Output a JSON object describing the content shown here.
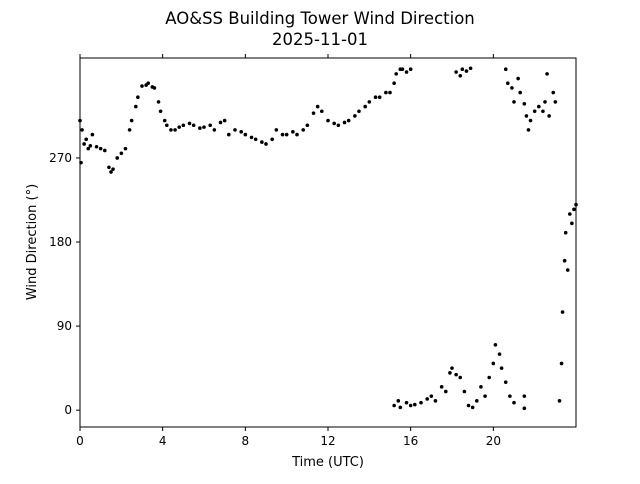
{
  "chart_data": {
    "type": "scatter",
    "title": "AO&SS Building Tower Wind Direction",
    "subtitle": "2025-11-01",
    "xlabel": "Time (UTC)",
    "ylabel": "Wind Direction (°)",
    "xlim": [
      0,
      24
    ],
    "ylim": [
      -18,
      377
    ],
    "xticks": [
      0,
      4,
      8,
      12,
      16,
      20
    ],
    "xtick_labels": [
      "0",
      "4",
      "8",
      "12",
      "16",
      "20"
    ],
    "yticks": [
      0,
      90,
      180,
      270
    ],
    "ytick_labels": [
      "0",
      "90",
      "180",
      "270"
    ],
    "grid": false,
    "color": "#000000",
    "points": [
      [
        0.0,
        310
      ],
      [
        0.05,
        265
      ],
      [
        0.1,
        300
      ],
      [
        0.2,
        285
      ],
      [
        0.3,
        290
      ],
      [
        0.4,
        280
      ],
      [
        0.5,
        283
      ],
      [
        0.6,
        295
      ],
      [
        0.8,
        282
      ],
      [
        1.0,
        280
      ],
      [
        1.2,
        278
      ],
      [
        1.4,
        260
      ],
      [
        1.5,
        255
      ],
      [
        1.6,
        258
      ],
      [
        1.8,
        270
      ],
      [
        2.0,
        275
      ],
      [
        2.2,
        280
      ],
      [
        2.4,
        300
      ],
      [
        2.5,
        310
      ],
      [
        2.7,
        325
      ],
      [
        2.8,
        335
      ],
      [
        3.0,
        347
      ],
      [
        3.2,
        348
      ],
      [
        3.3,
        350
      ],
      [
        3.5,
        346
      ],
      [
        3.6,
        345
      ],
      [
        3.8,
        330
      ],
      [
        3.9,
        320
      ],
      [
        4.1,
        310
      ],
      [
        4.2,
        305
      ],
      [
        4.4,
        300
      ],
      [
        4.6,
        300
      ],
      [
        4.8,
        303
      ],
      [
        5.0,
        305
      ],
      [
        5.3,
        307
      ],
      [
        5.5,
        305
      ],
      [
        5.8,
        302
      ],
      [
        6.0,
        303
      ],
      [
        6.3,
        305
      ],
      [
        6.5,
        300
      ],
      [
        6.8,
        308
      ],
      [
        7.0,
        310
      ],
      [
        7.2,
        295
      ],
      [
        7.5,
        300
      ],
      [
        7.8,
        298
      ],
      [
        8.0,
        295
      ],
      [
        8.3,
        292
      ],
      [
        8.5,
        290
      ],
      [
        8.8,
        287
      ],
      [
        9.0,
        285
      ],
      [
        9.3,
        290
      ],
      [
        9.5,
        300
      ],
      [
        9.8,
        295
      ],
      [
        10.0,
        295
      ],
      [
        10.3,
        298
      ],
      [
        10.5,
        295
      ],
      [
        10.8,
        300
      ],
      [
        11.0,
        305
      ],
      [
        11.3,
        318
      ],
      [
        11.5,
        325
      ],
      [
        11.7,
        320
      ],
      [
        12.0,
        310
      ],
      [
        12.3,
        307
      ],
      [
        12.5,
        305
      ],
      [
        12.8,
        308
      ],
      [
        13.0,
        310
      ],
      [
        13.3,
        315
      ],
      [
        13.5,
        320
      ],
      [
        13.8,
        325
      ],
      [
        14.0,
        330
      ],
      [
        14.3,
        335
      ],
      [
        14.5,
        335
      ],
      [
        14.8,
        340
      ],
      [
        15.0,
        340
      ],
      [
        15.2,
        350
      ],
      [
        15.3,
        360
      ],
      [
        15.5,
        365
      ],
      [
        15.6,
        365
      ],
      [
        15.8,
        362
      ],
      [
        16.0,
        365
      ],
      [
        18.2,
        362
      ],
      [
        18.4,
        358
      ],
      [
        18.5,
        365
      ],
      [
        18.7,
        363
      ],
      [
        18.9,
        366
      ],
      [
        20.6,
        365
      ],
      [
        20.7,
        350
      ],
      [
        20.9,
        345
      ],
      [
        21.0,
        330
      ],
      [
        21.2,
        355
      ],
      [
        21.3,
        340
      ],
      [
        21.5,
        328
      ],
      [
        21.6,
        315
      ],
      [
        21.7,
        300
      ],
      [
        21.8,
        310
      ],
      [
        22.0,
        320
      ],
      [
        22.2,
        325
      ],
      [
        22.4,
        320
      ],
      [
        22.5,
        330
      ],
      [
        22.6,
        360
      ],
      [
        22.7,
        315
      ],
      [
        22.9,
        340
      ],
      [
        23.0,
        330
      ],
      [
        15.2,
        5
      ],
      [
        15.4,
        10
      ],
      [
        15.5,
        3
      ],
      [
        15.8,
        8
      ],
      [
        16.0,
        5
      ],
      [
        16.2,
        6
      ],
      [
        16.5,
        8
      ],
      [
        16.8,
        12
      ],
      [
        17.0,
        15
      ],
      [
        17.2,
        10
      ],
      [
        17.5,
        25
      ],
      [
        17.7,
        20
      ],
      [
        17.9,
        40
      ],
      [
        18.0,
        45
      ],
      [
        18.2,
        38
      ],
      [
        18.4,
        35
      ],
      [
        18.6,
        20
      ],
      [
        18.8,
        5
      ],
      [
        19.0,
        3
      ],
      [
        19.2,
        10
      ],
      [
        19.4,
        25
      ],
      [
        19.6,
        15
      ],
      [
        19.8,
        35
      ],
      [
        20.0,
        50
      ],
      [
        20.1,
        70
      ],
      [
        20.3,
        60
      ],
      [
        20.4,
        45
      ],
      [
        20.6,
        30
      ],
      [
        20.8,
        15
      ],
      [
        21.0,
        8
      ],
      [
        21.5,
        15
      ],
      [
        21.5,
        2
      ],
      [
        23.2,
        10
      ],
      [
        23.3,
        50
      ],
      [
        23.35,
        105
      ],
      [
        23.45,
        160
      ],
      [
        23.5,
        190
      ],
      [
        23.6,
        150
      ],
      [
        23.7,
        210
      ],
      [
        23.8,
        200
      ],
      [
        23.9,
        215
      ],
      [
        24.0,
        220
      ]
    ]
  }
}
